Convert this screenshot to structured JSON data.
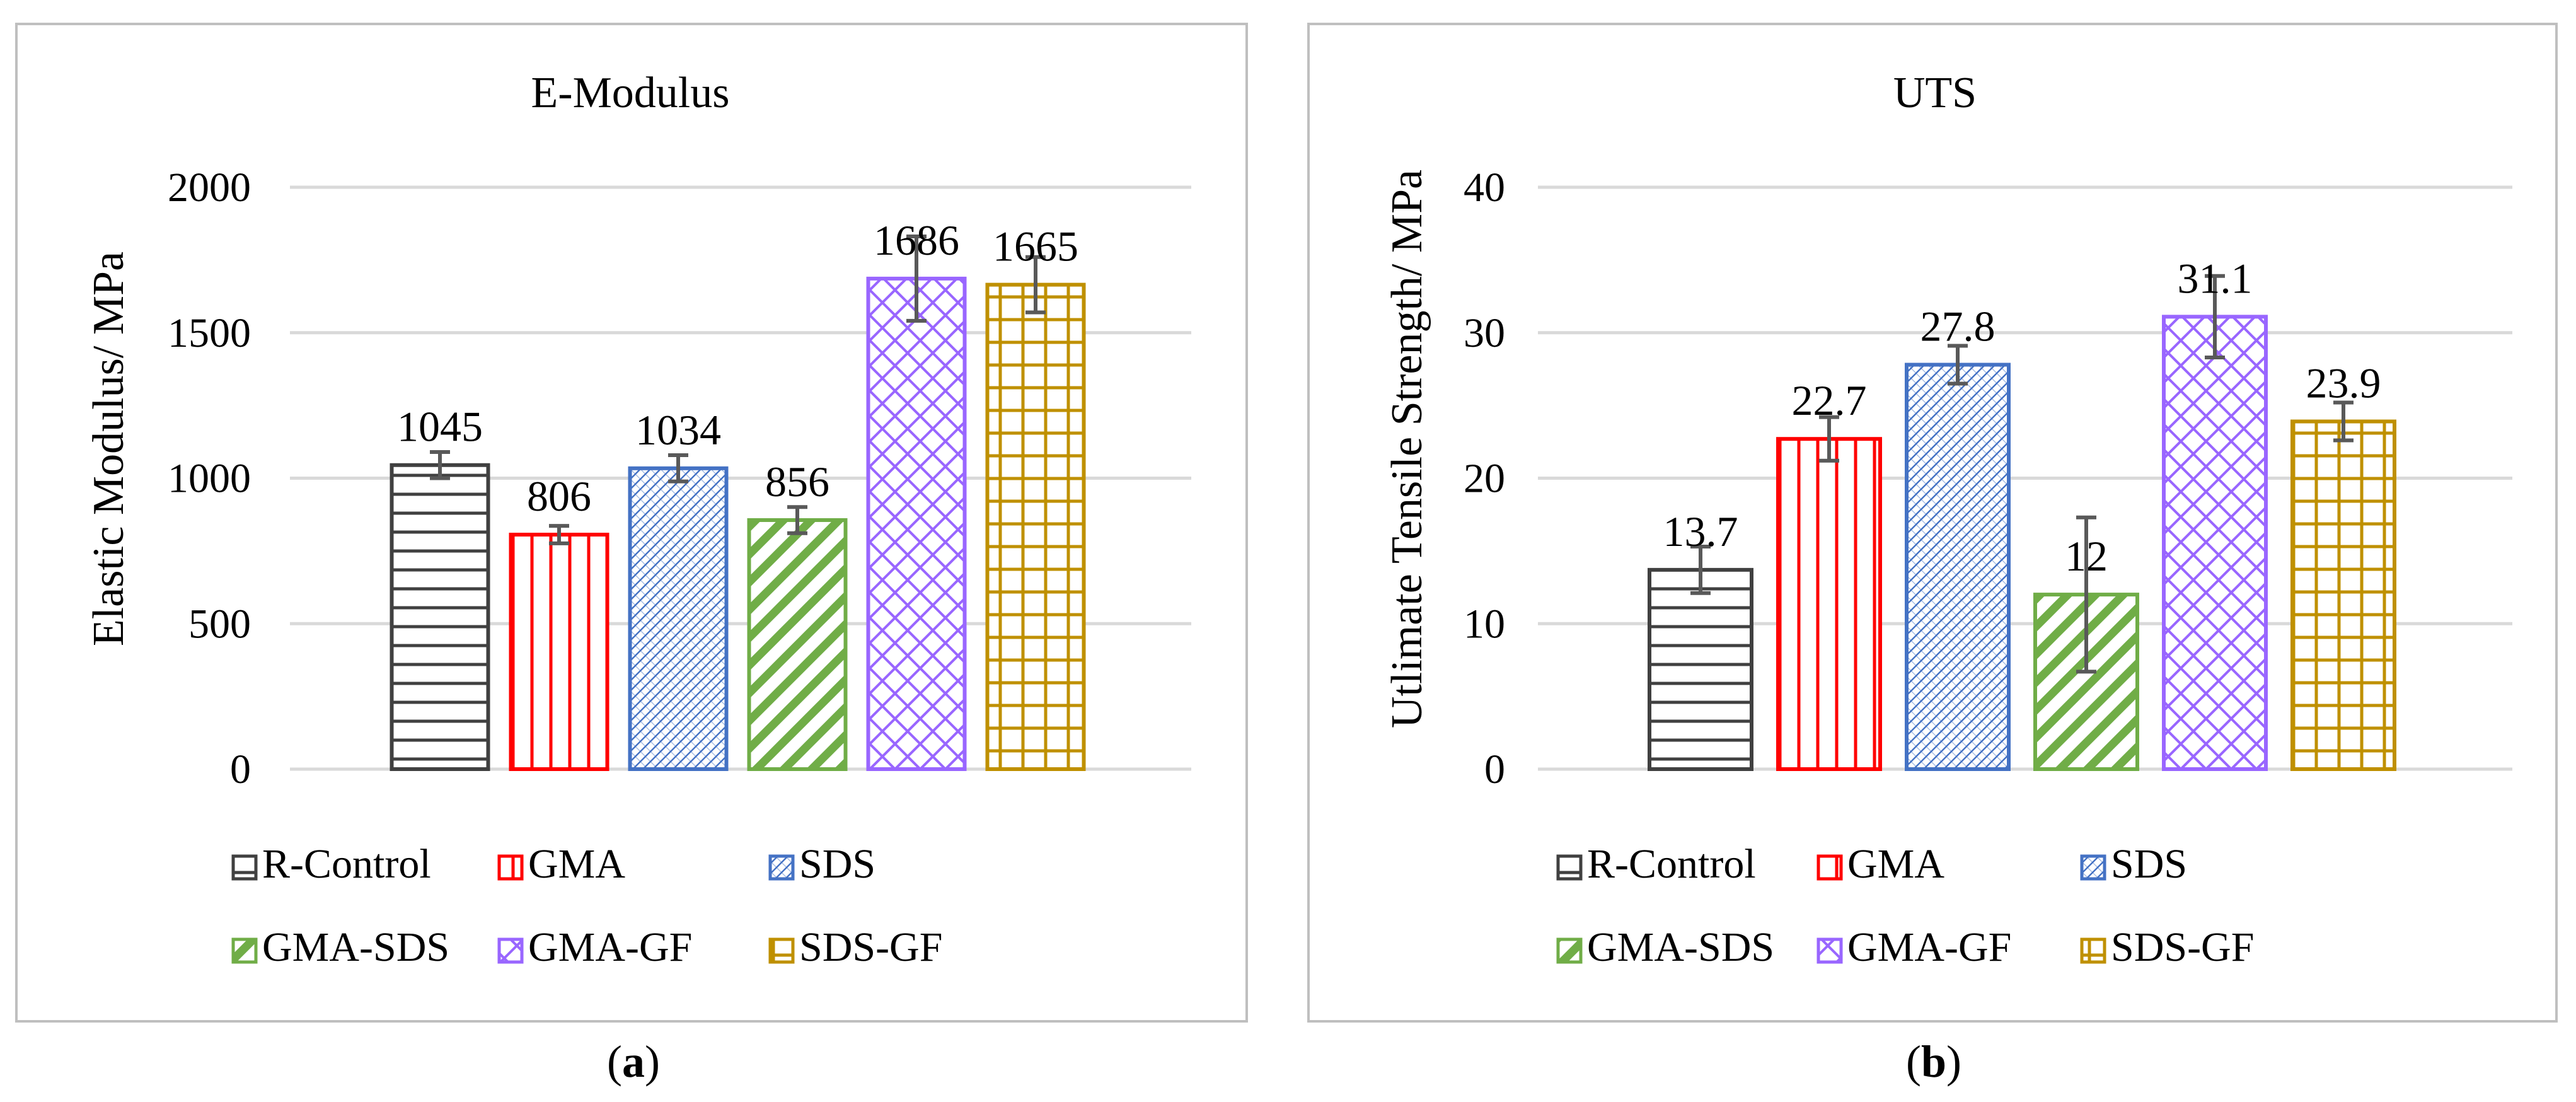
{
  "figure": {
    "caption_a": {
      "open": "(",
      "letter": "a",
      "close": ")"
    },
    "caption_b": {
      "open": "(",
      "letter": "b",
      "close": ")"
    }
  },
  "chart_data": [
    {
      "id": "a",
      "type": "bar",
      "title": "E-Modulus",
      "xlabel": "",
      "ylabel": "Elastic Modulus/ MPa",
      "ylim": [
        0,
        2000
      ],
      "yticks": [
        0,
        500,
        1000,
        1500,
        2000
      ],
      "grid": true,
      "legend_position": "bottom",
      "categories": [
        "R-Control",
        "GMA",
        "SDS",
        "GMA-SDS",
        "GMA-GF",
        "SDS-GF"
      ],
      "values": [
        1045,
        806,
        1034,
        856,
        1686,
        1665
      ],
      "value_labels": [
        "1045",
        "806",
        "1034",
        "856",
        "1686",
        "1665"
      ],
      "error": [
        45,
        30,
        45,
        45,
        145,
        95
      ]
    },
    {
      "id": "b",
      "type": "bar",
      "title": "UTS",
      "xlabel": "",
      "ylabel": "Utlimate Tensile Strength/ MPa",
      "ylim": [
        0,
        40
      ],
      "yticks": [
        0,
        10,
        20,
        30,
        40
      ],
      "grid": true,
      "legend_position": "bottom",
      "categories": [
        "R-Control",
        "GMA",
        "SDS",
        "GMA-SDS",
        "GMA-GF",
        "SDS-GF"
      ],
      "values": [
        13.7,
        22.7,
        27.8,
        12,
        31.1,
        23.9
      ],
      "value_labels": [
        "13.7",
        "22.7",
        "27.8",
        "12",
        "31.1",
        "23.9"
      ],
      "error": [
        1.6,
        1.5,
        1.3,
        5.3,
        2.8,
        1.3
      ]
    }
  ],
  "series_styles": [
    {
      "name": "R-Control",
      "color": "#404040",
      "pattern": "horizontal-lines"
    },
    {
      "name": "GMA",
      "color": "#ff0000",
      "pattern": "vertical-lines"
    },
    {
      "name": "SDS",
      "color": "#4472c4",
      "pattern": "dense-diagonal"
    },
    {
      "name": "GMA-SDS",
      "color": "#70ad47",
      "pattern": "wide-diagonal"
    },
    {
      "name": "GMA-GF",
      "color": "#9966ff",
      "pattern": "diamond-lattice"
    },
    {
      "name": "SDS-GF",
      "color": "#bf9000",
      "pattern": "grid"
    }
  ],
  "error_bar_color": "#595959",
  "gridline_color": "#d9d9d9",
  "panel_border_color": "#bfbfbf"
}
